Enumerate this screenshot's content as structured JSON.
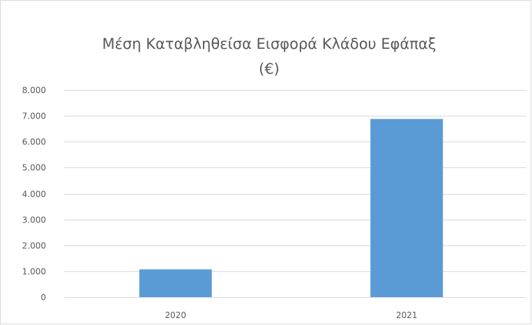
{
  "chart_data": {
    "type": "bar",
    "title_line1": "Μέση Καταβληθείσα  Εισφορά Κλάδου Εφάπαξ",
    "title_line2": "(€)",
    "categories": [
      "2020",
      "2021"
    ],
    "values": [
      1070,
      6880
    ],
    "ylim": [
      0,
      8000
    ],
    "yticks": [
      0,
      1000,
      2000,
      3000,
      4000,
      5000,
      6000,
      7000,
      8000
    ],
    "ytick_labels": [
      "0",
      "1.000",
      "2.000",
      "3.000",
      "4.000",
      "5.000",
      "6.000",
      "7.000",
      "8.000"
    ],
    "grid": true,
    "bar_color": "#5B9BD5",
    "grid_color": "#D9D9D9"
  }
}
